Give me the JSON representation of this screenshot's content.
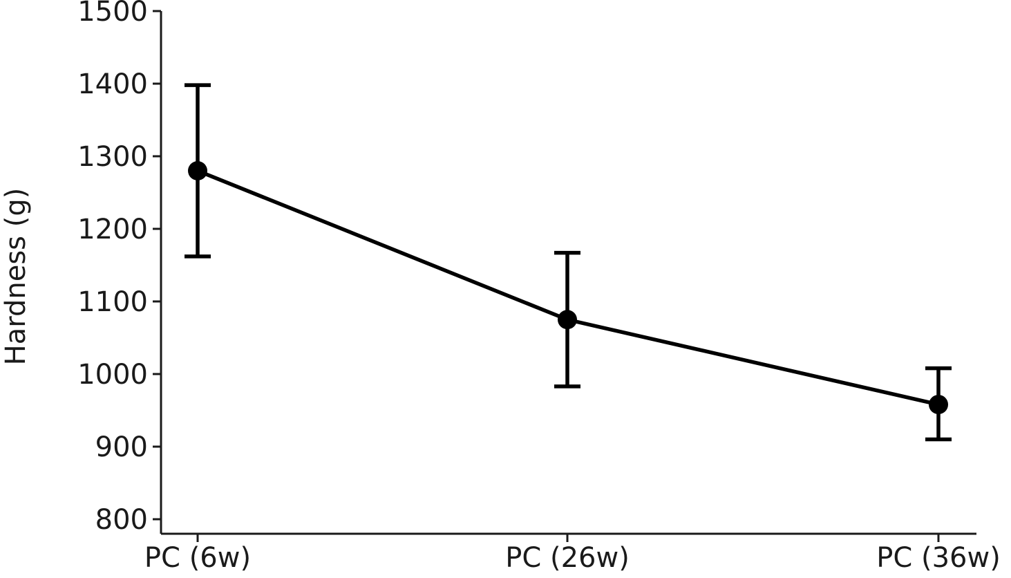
{
  "chart_data": {
    "type": "line",
    "title": "",
    "xlabel": "",
    "ylabel": "Hardness (g)",
    "categories": [
      "PC (6w)",
      "PC (26w)",
      "PC (36w)"
    ],
    "series": [
      {
        "values": [
          1280,
          1075,
          958
        ],
        "error_low": [
          1162,
          983,
          910
        ],
        "error_high": [
          1398,
          1167,
          1008
        ],
        "color": "#000000"
      }
    ],
    "ylim": [
      780,
      1500
    ],
    "yticks": [
      800,
      900,
      1000,
      1100,
      1200,
      1300,
      1400,
      1500
    ],
    "ytick_labels": [
      "800",
      "900",
      "1000",
      "1100",
      "1200",
      "1300",
      "1400",
      "1500"
    ],
    "grid": false,
    "legend": "none"
  }
}
